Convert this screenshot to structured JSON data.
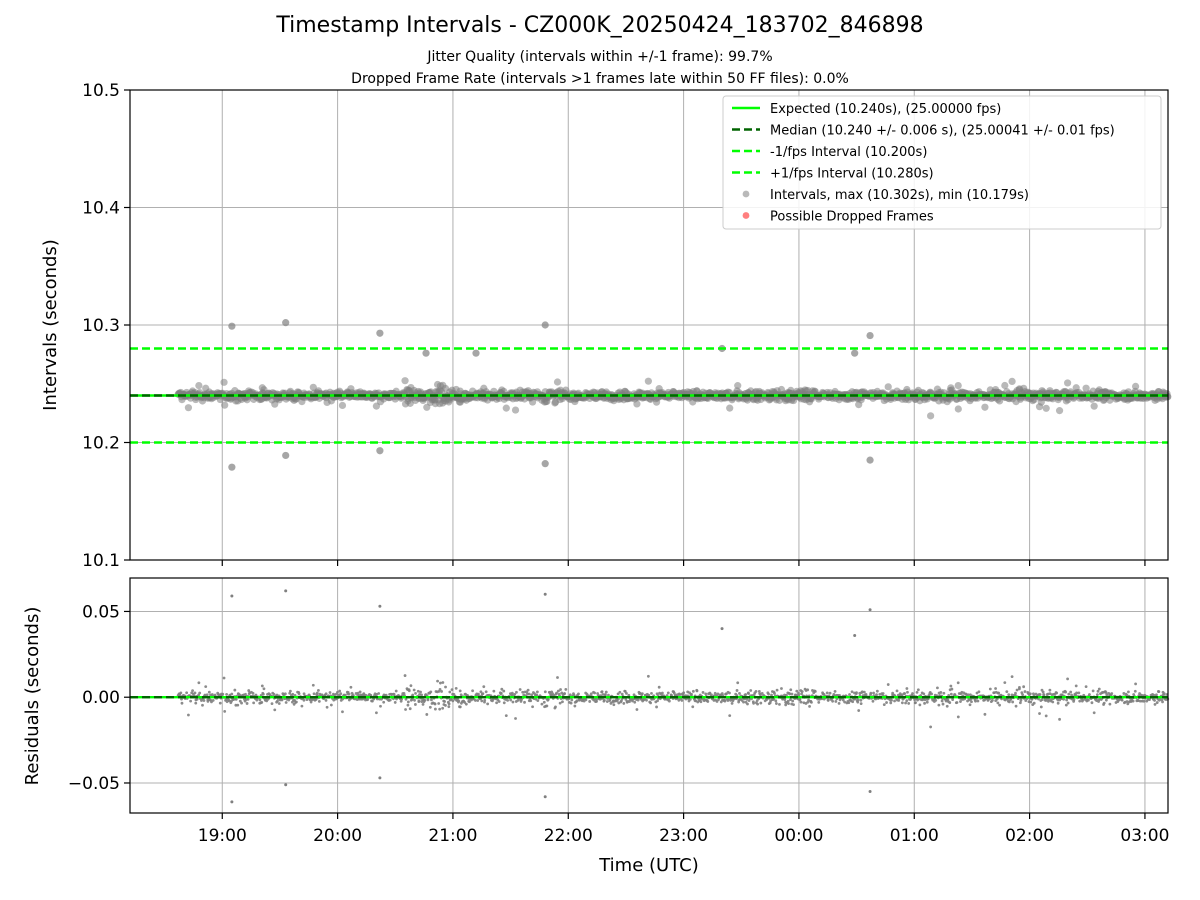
{
  "title": "Timestamp Intervals - CZ000K_20250424_183702_846898",
  "subtitle_1": "Jitter Quality (intervals within +/-1 frame): 99.7%",
  "subtitle_2": "Dropped Frame Rate (intervals >1 frames late within 50 FF files): 0.0%",
  "colors": {
    "expected": "#00ff00",
    "median": "#006400",
    "interval_band": "#00ff00",
    "points": "#808080",
    "dropped": "#ff0000",
    "grid": "#b0b0b0"
  },
  "chart_data": [
    {
      "type": "scatter",
      "panel": "intervals",
      "xlabel": "",
      "ylabel": "Intervals (seconds)",
      "ylim": [
        10.1,
        10.5
      ],
      "yticks": [
        10.1,
        10.2,
        10.3,
        10.4,
        10.5
      ],
      "ytick_labels": [
        "10.1",
        "10.2",
        "10.3",
        "10.4",
        "10.5"
      ],
      "xlim": [
        "18:12",
        "03:12"
      ],
      "grid": true,
      "legend_position": "top-right",
      "reference_lines": [
        {
          "name": "Expected (10.240s), (25.00000 fps)",
          "y": 10.24,
          "style": "solid",
          "color": "#00ff00"
        },
        {
          "name": "Median (10.240 +/- 0.006 s), (25.00041 +/- 0.01 fps)",
          "y": 10.24,
          "style": "dashed",
          "color": "#006400"
        },
        {
          "name": "-1/fps Interval (10.200s)",
          "y": 10.2,
          "style": "dashed",
          "color": "#00ff00"
        },
        {
          "name": "+1/fps Interval (10.280s)",
          "y": 10.28,
          "style": "dashed",
          "color": "#00ff00"
        }
      ],
      "series": [
        {
          "name": "Intervals, max (10.302s), min (10.179s)",
          "color": "#808080",
          "x_start": "18:37",
          "x_end": "03:12",
          "center": 10.24,
          "jitter_sd": 0.006
        },
        {
          "name": "Possible Dropped Frames",
          "color": "#ff0000",
          "points": []
        }
      ],
      "notable_points": [
        {
          "x": "19:05",
          "y": 10.299
        },
        {
          "x": "19:05",
          "y": 10.179
        },
        {
          "x": "19:33",
          "y": 10.302
        },
        {
          "x": "19:33",
          "y": 10.189
        },
        {
          "x": "20:22",
          "y": 10.293
        },
        {
          "x": "20:22",
          "y": 10.193
        },
        {
          "x": "21:48",
          "y": 10.3
        },
        {
          "x": "21:48",
          "y": 10.182
        },
        {
          "x": "00:37",
          "y": 10.291
        },
        {
          "x": "00:37",
          "y": 10.185
        },
        {
          "x": "23:20",
          "y": 10.28
        },
        {
          "x": "00:29",
          "y": 10.276
        },
        {
          "x": "20:46",
          "y": 10.276
        },
        {
          "x": "21:12",
          "y": 10.276
        }
      ]
    },
    {
      "type": "scatter",
      "panel": "residuals",
      "xlabel": "Time (UTC)",
      "ylabel": "Residuals (seconds)",
      "ylim": [
        -0.0675,
        0.0695
      ],
      "yticks": [
        -0.05,
        0.0,
        0.05
      ],
      "ytick_labels": [
        "−0.05",
        "0.00",
        "0.05"
      ],
      "xticks": [
        "19:00",
        "20:00",
        "21:00",
        "22:00",
        "23:00",
        "00:00",
        "01:00",
        "02:00",
        "03:00"
      ],
      "grid": true,
      "reference_lines": [
        {
          "y": 0.0,
          "style": "solid",
          "color": "#00ff00"
        },
        {
          "y": 0.0,
          "style": "dashed",
          "color": "#006400"
        }
      ],
      "series": [
        {
          "name": "",
          "color": "#808080",
          "x_start": "18:37",
          "x_end": "03:12",
          "center": 0.0,
          "jitter_sd": 0.006
        }
      ],
      "notable_points": [
        {
          "x": "19:05",
          "y": 0.059
        },
        {
          "x": "19:05",
          "y": -0.061
        },
        {
          "x": "19:33",
          "y": 0.062
        },
        {
          "x": "19:33",
          "y": -0.051
        },
        {
          "x": "20:22",
          "y": 0.053
        },
        {
          "x": "20:22",
          "y": -0.047
        },
        {
          "x": "21:48",
          "y": 0.06
        },
        {
          "x": "21:48",
          "y": -0.058
        },
        {
          "x": "00:37",
          "y": 0.051
        },
        {
          "x": "00:37",
          "y": -0.055
        },
        {
          "x": "23:20",
          "y": 0.04
        },
        {
          "x": "00:29",
          "y": 0.036
        }
      ]
    }
  ]
}
